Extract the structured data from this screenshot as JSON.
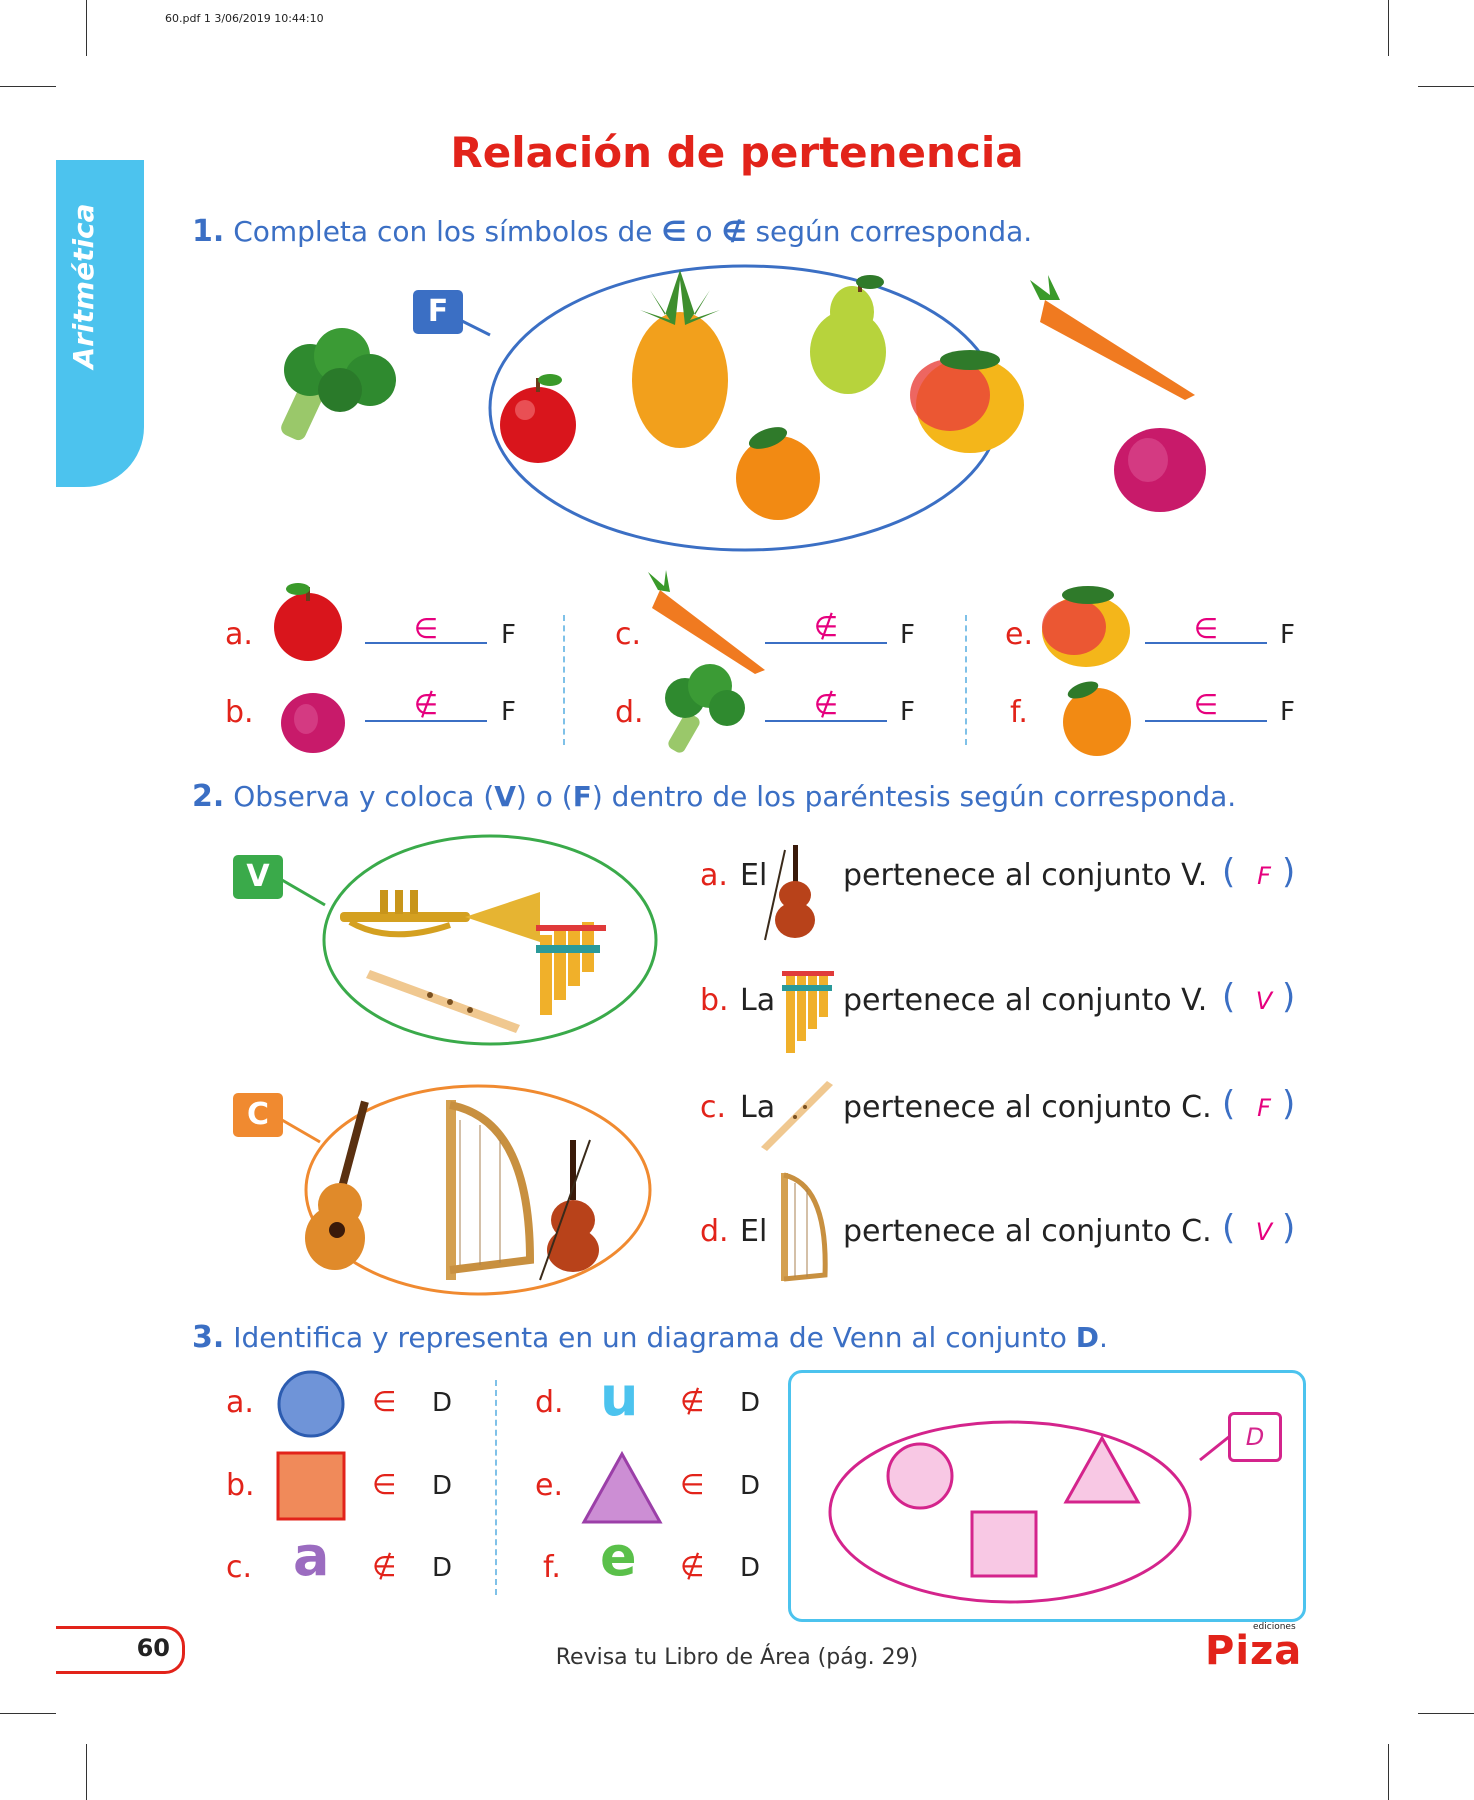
{
  "print_header": "60.pdf   1   3/06/2019   10:44:10",
  "sidebar": {
    "label": "Aritmética"
  },
  "title": "Relación de pertenencia",
  "colors": {
    "title_red": "#e2231a",
    "question_blue": "#3b6fc4",
    "answer_magenta": "#e6007e",
    "tab_cyan": "#4cc3ee"
  },
  "q1": {
    "number": "1.",
    "text_before": "Completa con los símbolos de",
    "symbol_in": "∈",
    "text_or": "o",
    "symbol_notin": "∉",
    "text_after": "según corresponda.",
    "set_label": "F",
    "set_items": [
      "apple-icon",
      "pineapple-icon",
      "pear-icon",
      "orange-icon",
      "mango-icon"
    ],
    "outside_items": [
      "broccoli-icon",
      "carrot-icon",
      "onion-icon"
    ],
    "rows": [
      {
        "letter": "a.",
        "item": "apple-icon",
        "answer": "∈",
        "set": "F"
      },
      {
        "letter": "b.",
        "item": "onion-icon",
        "answer": "∉",
        "set": "F"
      },
      {
        "letter": "c.",
        "item": "carrot-icon",
        "answer": "∉",
        "set": "F"
      },
      {
        "letter": "d.",
        "item": "broccoli-icon",
        "answer": "∉",
        "set": "F"
      },
      {
        "letter": "e.",
        "item": "mango-icon",
        "answer": "∈",
        "set": "F"
      },
      {
        "letter": "f.",
        "item": "orange-icon",
        "answer": "∈",
        "set": "F"
      }
    ]
  },
  "q2": {
    "number": "2.",
    "text_1": "Observa y coloca (",
    "v": "V",
    "text_2": ") o (",
    "f": "F",
    "text_3": ") dentro de los paréntesis según corresponda.",
    "set_v_label": "V",
    "set_c_label": "C",
    "set_v_items": [
      "trumpet-icon",
      "panpipe-icon",
      "recorder-flute-icon"
    ],
    "set_c_items": [
      "guitar-icon",
      "harp-icon",
      "violin-icon"
    ],
    "statements": [
      {
        "letter": "a.",
        "article": "El",
        "item": "violin-icon",
        "text": "pertenece al conjunto V.",
        "answer": "F"
      },
      {
        "letter": "b.",
        "article": "La",
        "item": "panpipe-icon",
        "text": "pertenece al conjunto V.",
        "answer": "V"
      },
      {
        "letter": "c.",
        "article": "La",
        "item": "recorder-flute-icon",
        "text": "pertenece al conjunto C.",
        "answer": "F"
      },
      {
        "letter": "d.",
        "article": "El",
        "item": "harp-icon",
        "text": "pertenece al conjunto C.",
        "answer": "V"
      }
    ],
    "paren_open": "(",
    "paren_close": ")"
  },
  "q3": {
    "number": "3.",
    "text": "Identifica y representa en un diagrama de Venn al conjunto",
    "set_name": "D",
    "period": ".",
    "rows": [
      {
        "letter": "a.",
        "shape": "circle",
        "symbol": "∈",
        "set": "D"
      },
      {
        "letter": "b.",
        "shape": "square",
        "symbol": "∈",
        "set": "D"
      },
      {
        "letter": "c.",
        "glyph": "a",
        "symbol": "∉",
        "set": "D"
      },
      {
        "letter": "d.",
        "glyph": "u",
        "symbol": "∉",
        "set": "D"
      },
      {
        "letter": "e.",
        "shape": "triangle",
        "symbol": "∈",
        "set": "D"
      },
      {
        "letter": "f.",
        "glyph": "e",
        "symbol": "∉",
        "set": "D"
      }
    ],
    "venn_label": "D"
  },
  "footer": {
    "page_number": "60",
    "note": "Revisa tu Libro de Área (pág. 29)",
    "logo": "Piza",
    "logo_sub": "ediciones"
  }
}
